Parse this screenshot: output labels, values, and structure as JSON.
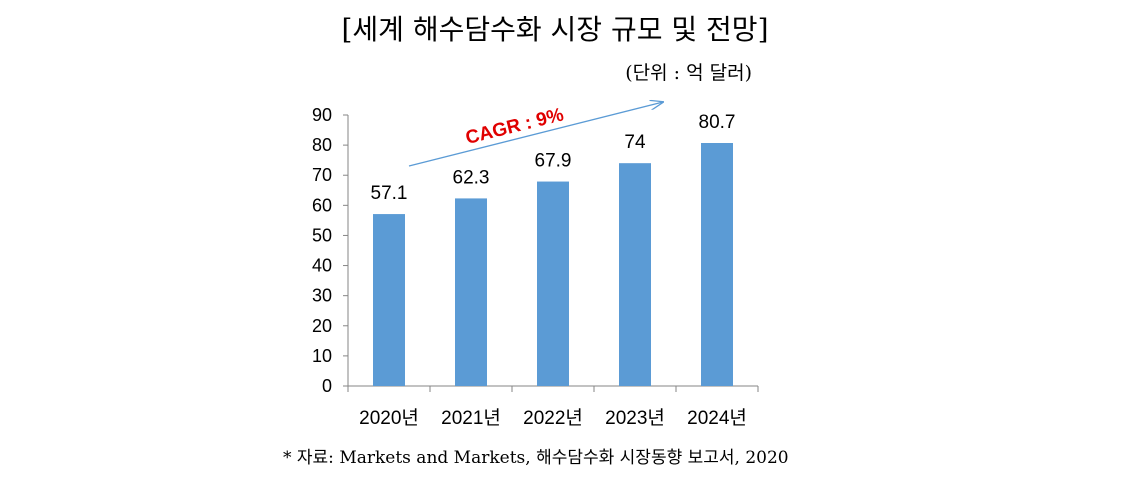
{
  "chart_data": {
    "type": "bar",
    "title": "[세계 해수담수화 시장 규모 및 전망]",
    "unit_note": "(단위 : 억 달러)",
    "categories": [
      "2020년",
      "2021년",
      "2022년",
      "2023년",
      "2024년"
    ],
    "values": [
      57.1,
      62.3,
      67.9,
      74,
      80.7
    ],
    "data_labels": [
      "57.1",
      "62.3",
      "67.9",
      "74",
      "80.7"
    ],
    "ylim": [
      0,
      90
    ],
    "yticks": [
      0,
      10,
      20,
      30,
      40,
      50,
      60,
      70,
      80,
      90
    ],
    "ytick_labels": [
      "0",
      "10",
      "20",
      "30",
      "40",
      "50",
      "60",
      "70",
      "80",
      "90"
    ],
    "bar_color": "#5b9bd5",
    "grid": false,
    "annotation": {
      "text": "CAGR : 9%",
      "color": "#e00000",
      "arrow_color": "#5b9bd5"
    },
    "source": "* 자료: Markets and Markets, 해수담수화 시장동향 보고서, 2020"
  }
}
